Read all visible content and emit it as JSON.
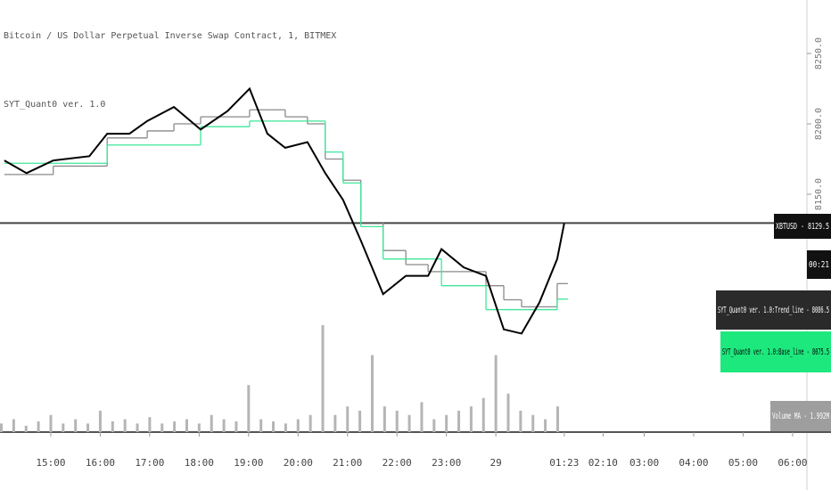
{
  "chart_data": {
    "type": "line",
    "title": "Bitcoin / US Dollar Perpetual Inverse Swap Contract, 1, BITMEX",
    "subtitle": "SYT_Quant0 ver. 1.0",
    "x": [
      0.06,
      0.51,
      1.05,
      1.78,
      2.14,
      2.59,
      2.95,
      3.49,
      4.03,
      4.57,
      5.02,
      5.38,
      5.74,
      6.19,
      6.55,
      6.91,
      7.27,
      7.72,
      8.18,
      8.63,
      8.9,
      9.35,
      9.8,
      10.16,
      10.52,
      10.88,
      11.24,
      11.383
    ],
    "series": [
      {
        "name": "XBTUSD",
        "color": "#000000",
        "style": "line",
        "values": [
          8174,
          8165,
          8174,
          8177,
          8193,
          8193,
          8202,
          8212,
          8196,
          8209,
          8225,
          8193,
          8183,
          8187,
          8165,
          8146,
          8117,
          8079,
          8092,
          8092,
          8111,
          8098,
          8092,
          8054,
          8051,
          8073,
          8104,
          8129.5
        ]
      },
      {
        "name": "SYT_Quant0 ver. 1.0:Trend_line",
        "color": "#8a8a8a",
        "style": "step",
        "values": [
          8164,
          8164,
          8170,
          8170,
          8190,
          8190,
          8195,
          8200,
          8205,
          8205,
          8210,
          8210,
          8205,
          8200,
          8175,
          8160,
          8130,
          8110,
          8100,
          8095,
          8095,
          8095,
          8085,
          8075,
          8070,
          8070,
          8086.5,
          8086.5
        ]
      },
      {
        "name": "SYT_Quant0 ver. 1.0:Base_line",
        "color": "#3ee69a",
        "style": "step",
        "values": [
          8172,
          8172,
          8172,
          8172,
          8185,
          8185,
          8185,
          8185,
          8198,
          8198,
          8202,
          8202,
          8202,
          8202,
          8180,
          8158,
          8127,
          8104,
          8104,
          8104,
          8085,
          8085,
          8068,
          8068,
          8068,
          8068,
          8075.5,
          8075.5
        ]
      }
    ],
    "volume": {
      "color": "#b5b5b5",
      "x": [
        0,
        0.25,
        0.5,
        0.75,
        1,
        1.25,
        1.5,
        1.75,
        2,
        2.25,
        2.5,
        2.75,
        3,
        3.25,
        3.5,
        3.75,
        4,
        4.25,
        4.5,
        4.75,
        5,
        5.25,
        5.5,
        5.75,
        6,
        6.25,
        6.5,
        6.75,
        7,
        7.25,
        7.5,
        7.75,
        8,
        8.25,
        8.5,
        8.75,
        9,
        9.25,
        9.5,
        9.75,
        10,
        10.25,
        10.5,
        10.75,
        11,
        11.25
      ],
      "values": [
        2,
        3,
        1.5,
        2.5,
        4,
        2,
        3,
        2,
        5,
        2.5,
        3,
        2,
        3.5,
        2,
        2.5,
        3,
        2,
        4,
        3,
        2.5,
        11,
        3,
        2.5,
        2,
        3,
        4,
        25,
        4,
        6,
        5,
        18,
        6,
        5,
        4,
        7,
        3,
        4,
        5,
        6,
        8,
        18,
        9,
        5,
        4,
        3,
        6
      ]
    },
    "xlim": [
      0,
      16.29
    ],
    "ylim": [
      7981,
      8288
    ],
    "xticks": [
      {
        "value": 1,
        "label": "15:00"
      },
      {
        "value": 2,
        "label": "16:00"
      },
      {
        "value": 3,
        "label": "17:00"
      },
      {
        "value": 4,
        "label": "18:00"
      },
      {
        "value": 5,
        "label": "19:00"
      },
      {
        "value": 6,
        "label": "20:00"
      },
      {
        "value": 7,
        "label": "21:00"
      },
      {
        "value": 8,
        "label": "22:00"
      },
      {
        "value": 9,
        "label": "23:00"
      },
      {
        "value": 10,
        "label": "29"
      },
      {
        "value": 11.383,
        "label": "01:23"
      },
      {
        "value": 12.167,
        "label": "02:10"
      },
      {
        "value": 13,
        "label": "03:00"
      },
      {
        "value": 14,
        "label": "04:00"
      },
      {
        "value": 15,
        "label": "05:00"
      },
      {
        "value": 16,
        "label": "06:00"
      }
    ],
    "yticks": [
      {
        "value": 8150,
        "label": "8150.0"
      },
      {
        "value": 8200,
        "label": "8200.0"
      },
      {
        "value": 8250,
        "label": "8250.0"
      }
    ],
    "last_price": 8129.5,
    "price_labels": [
      "XBTUSD - 8129.5",
      "00:21",
      "SYT_Quant0 ver. 1.0:Trend_line - 8086.5",
      "SYT_Quant0 ver. 1.0:Base_line - 8075.5",
      "Volume MA - 1.992M"
    ]
  }
}
